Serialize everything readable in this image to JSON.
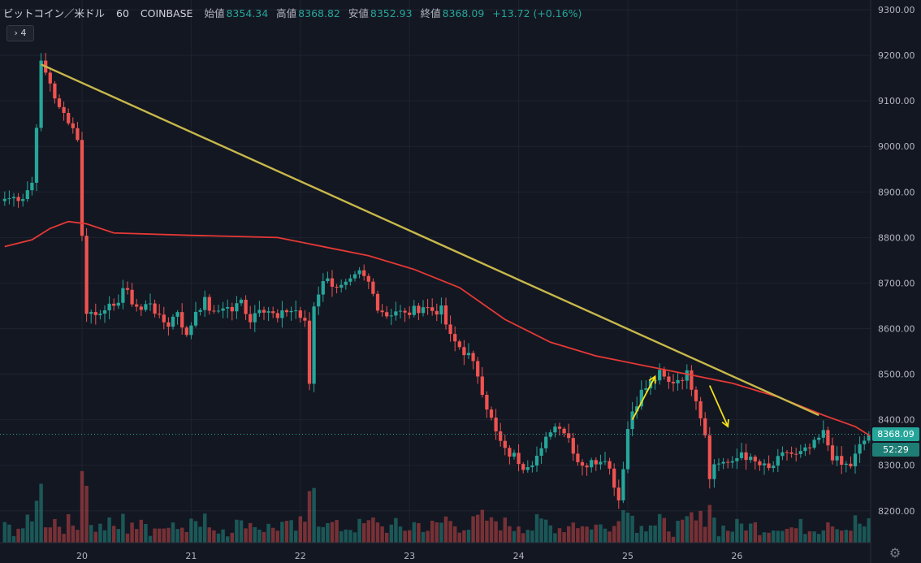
{
  "legend": {
    "symbol": "ビットコイン／米ドル",
    "interval": "60",
    "exchange": "COINBASE",
    "open_label": "始値",
    "open": "8354.34",
    "high_label": "高値",
    "high": "8368.82",
    "low_label": "安値",
    "low": "8352.93",
    "close_label": "終値",
    "close": "8368.09",
    "change": "+13.72 (+0.16%)"
  },
  "collapse_label": "› 4",
  "last_price_label": "8368.09",
  "countdown": "52:29",
  "colors": {
    "up": "#26a69a",
    "down": "#ef5350",
    "background": "#131722",
    "ma": "#e53935",
    "trendline": "#c8b84a",
    "arrows": "#f5e11a"
  },
  "chart_data": {
    "type": "candlestick",
    "xlabel": "",
    "ylabel": "",
    "ylim": [
      8130,
      9300
    ],
    "y_ticks": [
      "8200.00",
      "8300.00",
      "8400.00",
      "8500.00",
      "8600.00",
      "8700.00",
      "8800.00",
      "8900.00",
      "9000.00",
      "9100.00",
      "9200.00",
      "9300.00"
    ],
    "x_ticks": [
      {
        "label": "20",
        "bar": 17
      },
      {
        "label": "21",
        "bar": 41
      },
      {
        "label": "22",
        "bar": 65
      },
      {
        "label": "23",
        "bar": 89
      },
      {
        "label": "24",
        "bar": 113
      },
      {
        "label": "25",
        "bar": 137
      },
      {
        "label": "26",
        "bar": 161
      }
    ],
    "last_price": 8368.09,
    "price_anchors": [
      [
        0,
        8885
      ],
      [
        4,
        8890
      ],
      [
        6,
        8920
      ],
      [
        7,
        9050
      ],
      [
        8,
        9180
      ],
      [
        9,
        9160
      ],
      [
        10,
        9140
      ],
      [
        12,
        9080
      ],
      [
        14,
        9060
      ],
      [
        16,
        9020
      ],
      [
        17,
        8800
      ],
      [
        18,
        8640
      ],
      [
        20,
        8630
      ],
      [
        22,
        8650
      ],
      [
        24,
        8640
      ],
      [
        26,
        8690
      ],
      [
        28,
        8660
      ],
      [
        30,
        8640
      ],
      [
        32,
        8660
      ],
      [
        34,
        8620
      ],
      [
        36,
        8610
      ],
      [
        38,
        8640
      ],
      [
        40,
        8580
      ],
      [
        42,
        8640
      ],
      [
        44,
        8660
      ],
      [
        46,
        8630
      ],
      [
        48,
        8650
      ],
      [
        50,
        8640
      ],
      [
        52,
        8660
      ],
      [
        54,
        8620
      ],
      [
        56,
        8650
      ],
      [
        58,
        8640
      ],
      [
        60,
        8620
      ],
      [
        62,
        8640
      ],
      [
        64,
        8640
      ],
      [
        66,
        8610
      ],
      [
        67,
        8480
      ],
      [
        68,
        8650
      ],
      [
        70,
        8710
      ],
      [
        72,
        8700
      ],
      [
        74,
        8690
      ],
      [
        76,
        8700
      ],
      [
        78,
        8720
      ],
      [
        80,
        8700
      ],
      [
        82,
        8650
      ],
      [
        84,
        8630
      ],
      [
        86,
        8640
      ],
      [
        88,
        8630
      ],
      [
        90,
        8640
      ],
      [
        92,
        8650
      ],
      [
        94,
        8640
      ],
      [
        96,
        8640
      ],
      [
        98,
        8580
      ],
      [
        100,
        8560
      ],
      [
        102,
        8540
      ],
      [
        104,
        8500
      ],
      [
        106,
        8430
      ],
      [
        108,
        8370
      ],
      [
        110,
        8330
      ],
      [
        112,
        8320
      ],
      [
        114,
        8300
      ],
      [
        116,
        8310
      ],
      [
        118,
        8330
      ],
      [
        120,
        8380
      ],
      [
        122,
        8390
      ],
      [
        124,
        8360
      ],
      [
        126,
        8310
      ],
      [
        128,
        8300
      ],
      [
        130,
        8310
      ],
      [
        132,
        8320
      ],
      [
        134,
        8260
      ],
      [
        135,
        8225
      ],
      [
        136,
        8300
      ],
      [
        137,
        8380
      ],
      [
        138,
        8420
      ],
      [
        140,
        8460
      ],
      [
        142,
        8480
      ],
      [
        144,
        8500
      ],
      [
        146,
        8480
      ],
      [
        148,
        8490
      ],
      [
        150,
        8500
      ],
      [
        152,
        8450
      ],
      [
        154,
        8370
      ],
      [
        155,
        8280
      ],
      [
        156,
        8300
      ],
      [
        158,
        8310
      ],
      [
        160,
        8300
      ],
      [
        162,
        8330
      ],
      [
        164,
        8310
      ],
      [
        166,
        8300
      ],
      [
        168,
        8290
      ],
      [
        170,
        8310
      ],
      [
        172,
        8330
      ],
      [
        174,
        8320
      ],
      [
        176,
        8330
      ],
      [
        178,
        8345
      ],
      [
        180,
        8370
      ],
      [
        182,
        8320
      ],
      [
        184,
        8300
      ],
      [
        186,
        8300
      ],
      [
        188,
        8340
      ],
      [
        190,
        8368
      ]
    ],
    "ma": [
      [
        0,
        8780
      ],
      [
        6,
        8795
      ],
      [
        10,
        8820
      ],
      [
        14,
        8835
      ],
      [
        18,
        8830
      ],
      [
        24,
        8810
      ],
      [
        40,
        8805
      ],
      [
        60,
        8800
      ],
      [
        70,
        8780
      ],
      [
        80,
        8760
      ],
      [
        90,
        8730
      ],
      [
        100,
        8690
      ],
      [
        110,
        8620
      ],
      [
        120,
        8570
      ],
      [
        130,
        8540
      ],
      [
        140,
        8520
      ],
      [
        150,
        8500
      ],
      [
        160,
        8480
      ],
      [
        170,
        8450
      ],
      [
        180,
        8410
      ],
      [
        187,
        8385
      ],
      [
        191,
        8360
      ]
    ],
    "trendline": [
      [
        8,
        9180
      ],
      [
        179,
        8410
      ]
    ],
    "annotations": [
      {
        "type": "arrow",
        "from": [
          138,
          8400
        ],
        "to": [
          143,
          8495
        ]
      },
      {
        "type": "arrow",
        "from": [
          155,
          8475
        ],
        "to": [
          159,
          8385
        ]
      }
    ]
  }
}
